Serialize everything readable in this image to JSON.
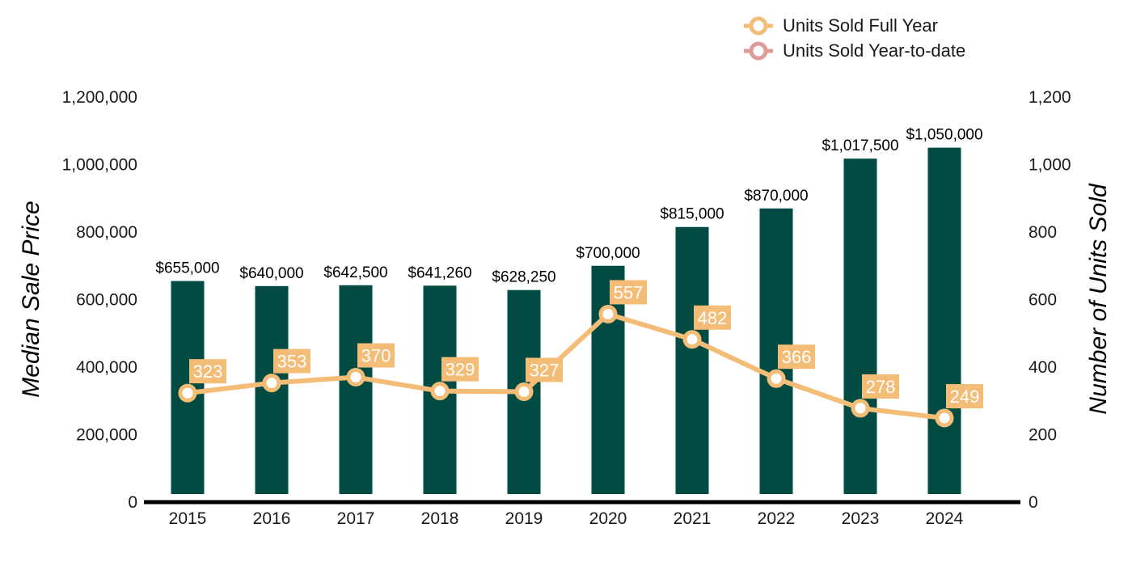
{
  "colors": {
    "bar": "#024b43",
    "line_full_year": "#f4bd77",
    "line_ytd": "#df9b98",
    "baseline": "#000000"
  },
  "chart_data": {
    "type": "bar",
    "categories": [
      "2015",
      "2016",
      "2017",
      "2018",
      "2019",
      "2020",
      "2021",
      "2022",
      "2023",
      "2024"
    ],
    "bar_series": {
      "values": [
        655000,
        640000,
        642500,
        641260,
        628250,
        700000,
        815000,
        870000,
        1017500,
        1050000
      ],
      "labels": [
        "$655,000",
        "$640,000",
        "$642,500",
        "$641,260",
        "$628,250",
        "$700,000",
        "$815,000",
        "$870,000",
        "$1,017,500",
        "$1,050,000"
      ]
    },
    "line_series": [
      {
        "name": "Units Sold Full Year",
        "type": "line",
        "axis": "right",
        "values": [
          323,
          353,
          370,
          329,
          327,
          557,
          482,
          366,
          278,
          249
        ],
        "labels": [
          "323",
          "353",
          "370",
          "329",
          "327",
          "557",
          "482",
          "366",
          "278",
          "249"
        ]
      }
    ],
    "legend": {
      "position": "top-right",
      "entries": [
        "Units Sold Full Year",
        "Units Sold Year-to-date"
      ]
    },
    "left_axis": {
      "title": "Median Sale Price",
      "range": [
        0,
        1200000
      ],
      "ticks": [
        "0",
        "200,000",
        "400,000",
        "600,000",
        "800,000",
        "1,000,000",
        "1,200,000"
      ]
    },
    "right_axis": {
      "title": "Number of Units Sold",
      "range": [
        0,
        1200
      ],
      "ticks": [
        "0",
        "200",
        "400",
        "600",
        "800",
        "1,000",
        "1,200"
      ]
    },
    "grid": false
  }
}
